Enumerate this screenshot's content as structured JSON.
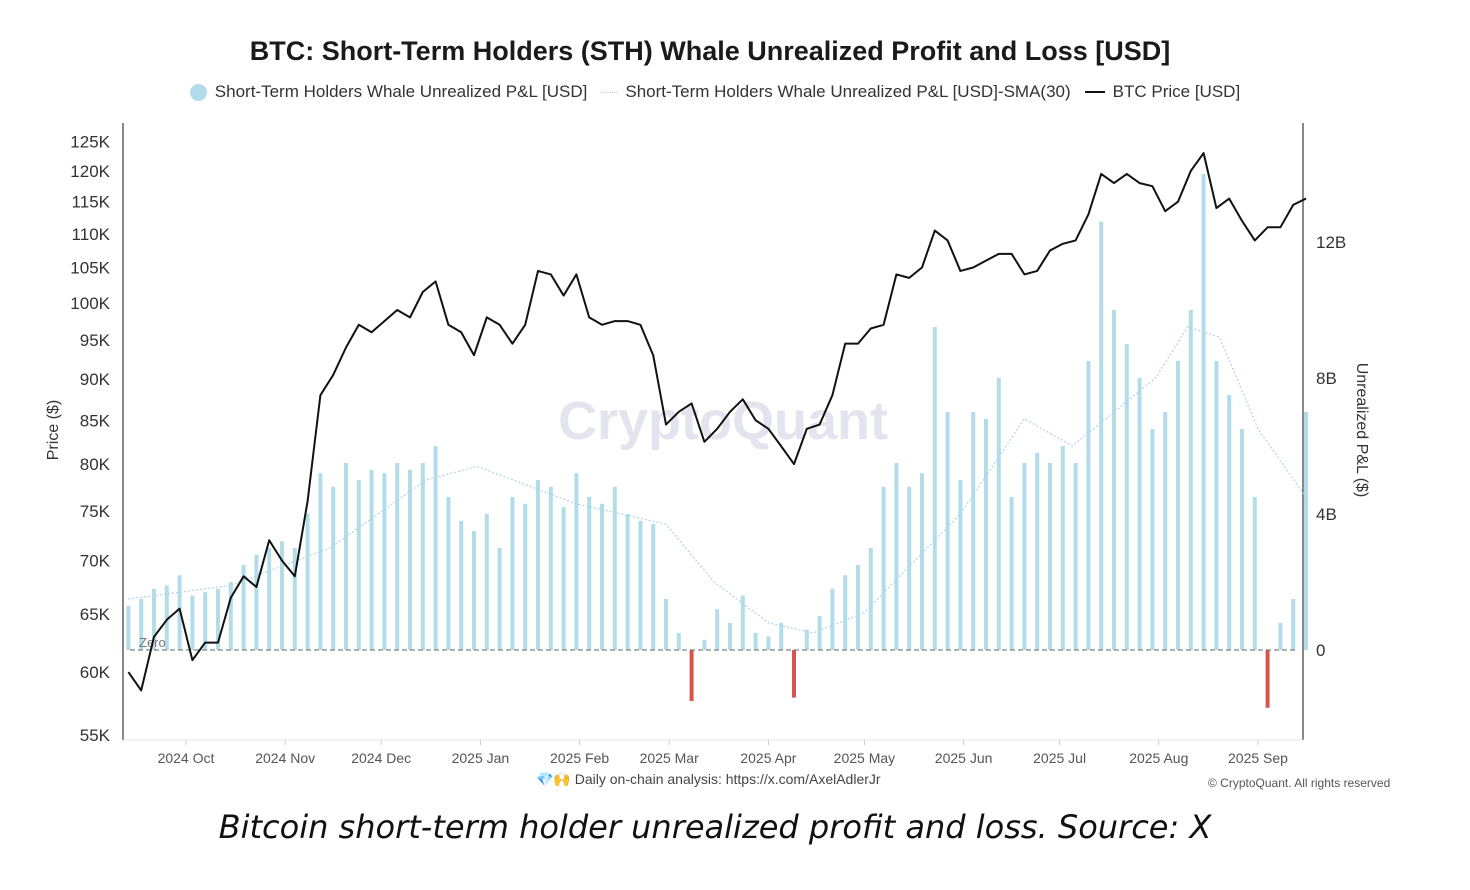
{
  "chart_data": {
    "type": "bar+line",
    "title": "BTC: Short-Term Holders (STH) Whale Unrealized Profit and Loss [USD]",
    "legend": [
      {
        "label": "Short-Term Holders Whale Unrealized P&L [USD]",
        "marker": "circle",
        "color": "#b3dcea"
      },
      {
        "label": "Short-Term Holders Whale Unrealized P&L [USD]-SMA(30)",
        "marker": "dotted-line",
        "color": "#a9d6e5"
      },
      {
        "label": "BTC Price [USD]",
        "marker": "line",
        "color": "#111111"
      }
    ],
    "legend_position": "top",
    "ylabel_left": "Price ($)",
    "ylabel_right": "Unrealized P&L ($)",
    "y_left_scale": "log",
    "y_left_ticks": [
      "55K",
      "60K",
      "65K",
      "70K",
      "75K",
      "80K",
      "85K",
      "90K",
      "95K",
      "100K",
      "105K",
      "110K",
      "115K",
      "120K",
      "125K"
    ],
    "y_right_ticks": [
      "0",
      "4B",
      "8B",
      "12B"
    ],
    "x_ticks": [
      {
        "date": "2024-10-01",
        "label": "2024 Oct"
      },
      {
        "date": "2024-11-01",
        "label": "2024 Nov"
      },
      {
        "date": "2024-12-01",
        "label": "2024 Dec"
      },
      {
        "date": "2025-01-01",
        "label": "2025 Jan"
      },
      {
        "date": "2025-02-01",
        "label": "2025 Feb"
      },
      {
        "date": "2025-03-01",
        "label": "2025 Mar"
      },
      {
        "date": "2025-04-01",
        "label": "2025 Apr"
      },
      {
        "date": "2025-05-01",
        "label": "2025 May"
      },
      {
        "date": "2025-06-01",
        "label": "2025 Jun"
      },
      {
        "date": "2025-07-01",
        "label": "2025 Jul"
      },
      {
        "date": "2025-08-01",
        "label": "2025 Aug"
      },
      {
        "date": "2025-09-01",
        "label": "2025 Sep"
      }
    ],
    "zero_label": "Zero",
    "colors": {
      "positive": "#b3dcea",
      "negative": "#d9534f",
      "price": "#111111",
      "sma": "#a9d6e5"
    },
    "x": [
      "2024-09-13",
      "2024-09-17",
      "2024-09-21",
      "2024-09-25",
      "2024-09-29",
      "2024-10-03",
      "2024-10-07",
      "2024-10-11",
      "2024-10-15",
      "2024-10-19",
      "2024-10-23",
      "2024-10-27",
      "2024-10-31",
      "2024-11-04",
      "2024-11-08",
      "2024-11-12",
      "2024-11-16",
      "2024-11-20",
      "2024-11-24",
      "2024-11-28",
      "2024-12-02",
      "2024-12-06",
      "2024-12-10",
      "2024-12-14",
      "2024-12-18",
      "2024-12-22",
      "2024-12-26",
      "2024-12-30",
      "2025-01-03",
      "2025-01-07",
      "2025-01-11",
      "2025-01-15",
      "2025-01-19",
      "2025-01-23",
      "2025-01-27",
      "2025-01-31",
      "2025-02-04",
      "2025-02-08",
      "2025-02-12",
      "2025-02-16",
      "2025-02-20",
      "2025-02-24",
      "2025-02-28",
      "2025-03-04",
      "2025-03-08",
      "2025-03-12",
      "2025-03-16",
      "2025-03-20",
      "2025-03-24",
      "2025-03-28",
      "2025-04-01",
      "2025-04-05",
      "2025-04-09",
      "2025-04-13",
      "2025-04-17",
      "2025-04-21",
      "2025-04-25",
      "2025-04-29",
      "2025-05-03",
      "2025-05-07",
      "2025-05-11",
      "2025-05-15",
      "2025-05-19",
      "2025-05-23",
      "2025-05-27",
      "2025-05-31",
      "2025-06-04",
      "2025-06-08",
      "2025-06-12",
      "2025-06-16",
      "2025-06-20",
      "2025-06-24",
      "2025-06-28",
      "2025-07-02",
      "2025-07-06",
      "2025-07-10",
      "2025-07-14",
      "2025-07-18",
      "2025-07-22",
      "2025-07-26",
      "2025-07-30",
      "2025-08-03",
      "2025-08-07",
      "2025-08-11",
      "2025-08-15",
      "2025-08-19",
      "2025-08-23",
      "2025-08-27",
      "2025-08-31",
      "2025-09-04",
      "2025-09-08",
      "2025-09-12",
      "2025-09-16"
    ],
    "price_usd_k": [
      60,
      58.5,
      63,
      64.5,
      65.5,
      61,
      62.5,
      62.5,
      66.5,
      68.5,
      67.5,
      72,
      70,
      68.5,
      76,
      88,
      90.5,
      94,
      97,
      96,
      97.5,
      99,
      98,
      101.5,
      103,
      97,
      96,
      93,
      98,
      97,
      94.5,
      97,
      104.5,
      104,
      101,
      104,
      98,
      97,
      97.5,
      97.5,
      97,
      93,
      84.5,
      86,
      87,
      82.5,
      84,
      86,
      87.5,
      85,
      84,
      82,
      80,
      84,
      84.5,
      88,
      94.5,
      94.5,
      96.5,
      97,
      104,
      103.5,
      105,
      110.5,
      109,
      104.5,
      105,
      106,
      107,
      107,
      104,
      104.5,
      107.5,
      108.5,
      109,
      113,
      119.5,
      118,
      119.5,
      118,
      117.5,
      113.5,
      115,
      120,
      123,
      114,
      115.5,
      112,
      109,
      111,
      111,
      114.5,
      115.5
    ],
    "pnl_usd_b": [
      1.3,
      1.5,
      1.8,
      1.9,
      2.2,
      1.6,
      1.7,
      1.8,
      2.0,
      2.5,
      2.8,
      3.0,
      3.2,
      3.0,
      4.0,
      5.2,
      4.8,
      5.5,
      5.0,
      5.3,
      5.2,
      5.5,
      5.3,
      5.5,
      6.0,
      4.5,
      3.8,
      3.5,
      4.0,
      3.0,
      4.5,
      4.3,
      5.0,
      4.8,
      4.2,
      5.2,
      4.5,
      4.3,
      4.8,
      4.0,
      3.8,
      3.7,
      1.5,
      0.5,
      -1.5,
      0.3,
      1.2,
      0.8,
      1.6,
      0.5,
      0.4,
      0.8,
      -1.4,
      0.6,
      1.0,
      1.8,
      2.2,
      2.5,
      3.0,
      4.8,
      5.5,
      4.8,
      5.2,
      9.5,
      7.0,
      5.0,
      7.0,
      6.8,
      8.0,
      4.5,
      5.5,
      5.8,
      5.5,
      6.0,
      5.5,
      8.5,
      12.6,
      10.0,
      9.0,
      8.0,
      6.5,
      7.0,
      8.5,
      10.0,
      14.0,
      8.5,
      7.5,
      6.5,
      4.5,
      -1.7,
      0.8,
      1.5,
      7.0
    ],
    "sma30_usd_b": [
      [
        "2024-09-13",
        1.5
      ],
      [
        "2024-10-15",
        1.9
      ],
      [
        "2024-11-15",
        3.0
      ],
      [
        "2024-12-15",
        5.0
      ],
      [
        "2024-12-31",
        5.4
      ],
      [
        "2025-01-31",
        4.3
      ],
      [
        "2025-02-28",
        3.7
      ],
      [
        "2025-03-15",
        2.0
      ],
      [
        "2025-04-01",
        0.8
      ],
      [
        "2025-04-15",
        0.5
      ],
      [
        "2025-05-01",
        1.1
      ],
      [
        "2025-05-31",
        4.0
      ],
      [
        "2025-06-20",
        6.8
      ],
      [
        "2025-07-05",
        6.0
      ],
      [
        "2025-07-31",
        8.0
      ],
      [
        "2025-08-10",
        9.5
      ],
      [
        "2025-08-20",
        9.2
      ],
      [
        "2025-09-01",
        6.5
      ],
      [
        "2025-09-16",
        4.5
      ]
    ]
  },
  "watermark": "CryptoQuant",
  "footer": {
    "emoji": "💎🙌",
    "text": "Daily on-chain analysis: ",
    "link": "https://x.com/AxelAdlerJr"
  },
  "copyright": "© CryptoQuant. All rights reserved",
  "caption": "Bitcoin short-term holder unrealized profit and loss. Source: X"
}
